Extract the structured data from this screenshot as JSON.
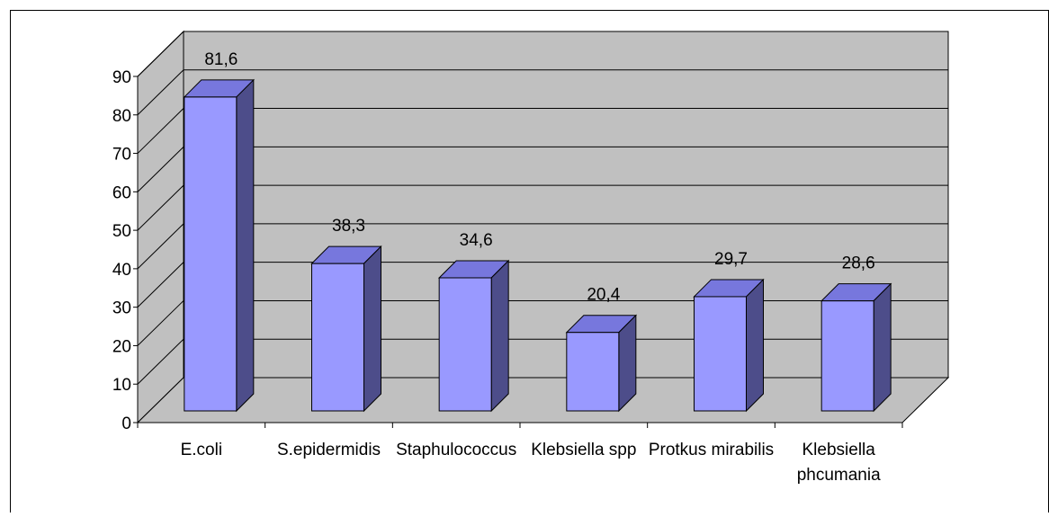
{
  "chart_data": {
    "type": "bar",
    "style": "3d-column",
    "categories": [
      "E.coli",
      "S.epidermidis",
      "Staphulococcus",
      "Klebsiella spp",
      "Protkus mirabilis",
      "Klebsiella phcumania"
    ],
    "category_lines": [
      [
        "E.coli"
      ],
      [
        "S.epidermidis"
      ],
      [
        "Staphulococcus"
      ],
      [
        "Klebsiella spp"
      ],
      [
        "Protkus mirabilis"
      ],
      [
        "Klebsiella",
        "phcumania"
      ]
    ],
    "values": [
      81.6,
      38.3,
      34.6,
      20.4,
      29.7,
      28.6
    ],
    "data_labels": [
      "81,6",
      "38,3",
      "34,6",
      "20,4",
      "29,7",
      "28,6"
    ],
    "y_ticks": [
      "0",
      "10",
      "20",
      "30",
      "40",
      "50",
      "60",
      "70",
      "80",
      "90"
    ],
    "ylim": [
      0,
      90
    ],
    "title": "",
    "xlabel": "",
    "ylabel": "",
    "grid": true,
    "legend": "none",
    "colors": {
      "wall": "#c0c0c0",
      "floor": "#c0c0c0",
      "bar_front": "#9999ff",
      "bar_top": "#7777dd",
      "bar_side": "#4d4d8a",
      "grid": "#000000",
      "outline": "#000000"
    }
  }
}
